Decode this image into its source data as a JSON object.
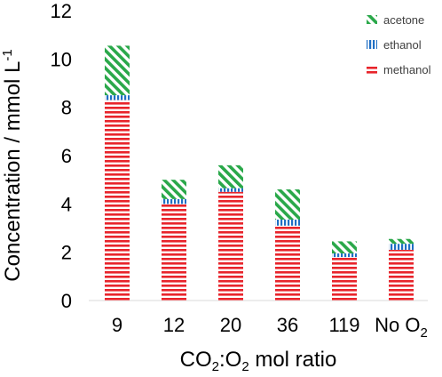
{
  "chart_data": {
    "type": "bar",
    "stacked": true,
    "categories": [
      "9",
      "12",
      "20",
      "36",
      "119",
      "No O2"
    ],
    "category_labels": [
      {
        "main": "9"
      },
      {
        "main": "12"
      },
      {
        "main": "20"
      },
      {
        "main": "36"
      },
      {
        "main": "119"
      },
      {
        "main": "No O",
        "sub": "2"
      }
    ],
    "series": [
      {
        "name": "methanol",
        "values": [
          8.3,
          4.0,
          4.5,
          3.1,
          1.8,
          2.1
        ],
        "color": "#e8242b",
        "pattern": "horizontal-stripes"
      },
      {
        "name": "ethanol",
        "values": [
          0.2,
          0.2,
          0.15,
          0.25,
          0.15,
          0.25
        ],
        "color": "#1f6fc4",
        "pattern": "vertical-stripes"
      },
      {
        "name": "acetone",
        "values": [
          2.05,
          0.8,
          0.95,
          1.25,
          0.5,
          0.2
        ],
        "color": "#2aa84a",
        "pattern": "diagonal-stripes"
      }
    ],
    "ylim": [
      0,
      12
    ],
    "yticks": [
      0,
      2,
      4,
      6,
      8,
      10,
      12
    ],
    "ylabel": {
      "text": "Concentration / mmol L",
      "sup": "-1"
    },
    "xlabel": {
      "parts": [
        "CO",
        "2",
        ":O",
        "2",
        " mol ratio"
      ]
    },
    "legend": {
      "position": "top-right",
      "order": [
        "acetone",
        "ethanol",
        "methanol"
      ]
    },
    "grid": false
  }
}
